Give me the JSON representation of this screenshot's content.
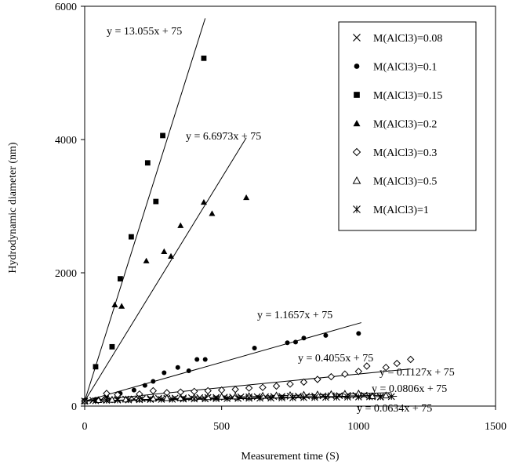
{
  "chart_data": {
    "type": "scatter",
    "xlabel": "Measurement time (S)",
    "ylabel": "Hydrodynamic diameter (nm)",
    "xlim": [
      0,
      1500
    ],
    "ylim": [
      0,
      6000
    ],
    "xticks": [
      "0",
      "500",
      "1000",
      "1500"
    ],
    "yticks": [
      "0",
      "2000",
      "4000",
      "6000"
    ],
    "grid": false,
    "legend_position": "top-right",
    "series": [
      {
        "name": "M(AlCl3)=0.08",
        "marker": "x",
        "points": [
          [
            0,
            75
          ],
          [
            30,
            85
          ],
          [
            60,
            92
          ],
          [
            90,
            95
          ],
          [
            120,
            100
          ],
          [
            150,
            105
          ],
          [
            180,
            107
          ],
          [
            210,
            110
          ],
          [
            240,
            112
          ],
          [
            270,
            115
          ],
          [
            300,
            117
          ],
          [
            330,
            120
          ],
          [
            360,
            122
          ],
          [
            390,
            125
          ],
          [
            420,
            127
          ],
          [
            450,
            129
          ],
          [
            480,
            130
          ],
          [
            510,
            133
          ],
          [
            540,
            135
          ],
          [
            570,
            137
          ],
          [
            600,
            138
          ],
          [
            630,
            140
          ],
          [
            660,
            141
          ],
          [
            690,
            143
          ],
          [
            720,
            145
          ],
          [
            750,
            147
          ],
          [
            780,
            149
          ],
          [
            810,
            150
          ],
          [
            840,
            151
          ],
          [
            870,
            153
          ],
          [
            900,
            155
          ],
          [
            930,
            157
          ],
          [
            960,
            159
          ],
          [
            990,
            160
          ],
          [
            1020,
            162
          ],
          [
            1050,
            140
          ],
          [
            1080,
            135
          ]
        ]
      },
      {
        "name": "M(AlCl3)=0.1",
        "marker": "circle",
        "points": [
          [
            0,
            75
          ],
          [
            40,
            100
          ],
          [
            80,
            150
          ],
          [
            130,
            190
          ],
          [
            180,
            240
          ],
          [
            220,
            310
          ],
          [
            250,
            370
          ],
          [
            290,
            500
          ],
          [
            340,
            580
          ],
          [
            380,
            530
          ],
          [
            410,
            700
          ],
          [
            440,
            700
          ],
          [
            620,
            870
          ],
          [
            740,
            950
          ],
          [
            770,
            960
          ],
          [
            800,
            1020
          ],
          [
            880,
            1060
          ],
          [
            1000,
            1090
          ]
        ]
      },
      {
        "name": "M(AlCl3)=0.15",
        "marker": "square",
        "points": [
          [
            0,
            75
          ],
          [
            40,
            590
          ],
          [
            100,
            890
          ],
          [
            130,
            1910
          ],
          [
            170,
            2540
          ],
          [
            230,
            3650
          ],
          [
            260,
            3070
          ],
          [
            285,
            4060
          ],
          [
            435,
            5220
          ]
        ]
      },
      {
        "name": "M(AlCl3)=0.2",
        "marker": "triangle",
        "points": [
          [
            0,
            75
          ],
          [
            110,
            1520
          ],
          [
            135,
            1500
          ],
          [
            225,
            2180
          ],
          [
            290,
            2320
          ],
          [
            315,
            2250
          ],
          [
            350,
            2710
          ],
          [
            435,
            3060
          ],
          [
            465,
            2890
          ],
          [
            590,
            3130
          ]
        ]
      },
      {
        "name": "M(AlCl3)=0.3",
        "marker": "diamond",
        "points": [
          [
            0,
            75
          ],
          [
            80,
            190
          ],
          [
            120,
            170
          ],
          [
            200,
            180
          ],
          [
            250,
            230
          ],
          [
            300,
            200
          ],
          [
            350,
            210
          ],
          [
            400,
            220
          ],
          [
            450,
            230
          ],
          [
            500,
            240
          ],
          [
            550,
            250
          ],
          [
            600,
            270
          ],
          [
            650,
            280
          ],
          [
            700,
            300
          ],
          [
            750,
            330
          ],
          [
            800,
            360
          ],
          [
            850,
            400
          ],
          [
            900,
            440
          ],
          [
            950,
            480
          ],
          [
            1000,
            520
          ],
          [
            1030,
            600
          ],
          [
            1100,
            580
          ],
          [
            1140,
            640
          ],
          [
            1190,
            700
          ]
        ]
      },
      {
        "name": "M(AlCl3)=0.5",
        "marker": "open-triangle",
        "points": [
          [
            0,
            75
          ],
          [
            50,
            90
          ],
          [
            100,
            95
          ],
          [
            150,
            100
          ],
          [
            200,
            110
          ],
          [
            250,
            115
          ],
          [
            300,
            120
          ],
          [
            350,
            125
          ],
          [
            400,
            130
          ],
          [
            450,
            135
          ],
          [
            500,
            140
          ],
          [
            550,
            145
          ],
          [
            600,
            150
          ],
          [
            650,
            155
          ],
          [
            700,
            160
          ],
          [
            750,
            165
          ],
          [
            800,
            170
          ],
          [
            850,
            175
          ],
          [
            900,
            180
          ],
          [
            950,
            185
          ],
          [
            1000,
            190
          ],
          [
            1050,
            150
          ],
          [
            1100,
            160
          ]
        ]
      },
      {
        "name": "M(AlCl3)=1",
        "marker": "asterisk",
        "points": [
          [
            0,
            75
          ],
          [
            40,
            80
          ],
          [
            80,
            85
          ],
          [
            120,
            90
          ],
          [
            160,
            92
          ],
          [
            200,
            95
          ],
          [
            240,
            98
          ],
          [
            280,
            100
          ],
          [
            320,
            102
          ],
          [
            360,
            104
          ],
          [
            400,
            106
          ],
          [
            440,
            108
          ],
          [
            480,
            110
          ],
          [
            520,
            112
          ],
          [
            560,
            114
          ],
          [
            600,
            116
          ],
          [
            640,
            118
          ],
          [
            680,
            120
          ],
          [
            720,
            122
          ],
          [
            760,
            124
          ],
          [
            800,
            126
          ],
          [
            840,
            128
          ],
          [
            880,
            130
          ],
          [
            920,
            132
          ],
          [
            960,
            134
          ],
          [
            1000,
            136
          ],
          [
            1040,
            138
          ],
          [
            1080,
            140
          ],
          [
            1120,
            142
          ]
        ]
      }
    ],
    "trendlines": [
      {
        "label": "y = 13.055x + 75",
        "slope": 13.055,
        "intercept": 75,
        "x_end": 440
      },
      {
        "label": "y = 6.6973x + 75",
        "slope": 6.6973,
        "intercept": 75,
        "x_end": 590
      },
      {
        "label": "y = 1.1657x + 75",
        "slope": 1.1657,
        "intercept": 75,
        "x_end": 1010
      },
      {
        "label": "y = 0.4055x + 75",
        "slope": 0.4055,
        "intercept": 75,
        "x_end": 1190
      },
      {
        "label": "y = 0.1127x + 75",
        "slope": 0.1127,
        "intercept": 75,
        "x_end": 1120
      },
      {
        "label": "y = 0.0806x + 75",
        "slope": 0.0806,
        "intercept": 75,
        "x_end": 1100
      },
      {
        "label": "y = 0.0634x + 75",
        "slope": 0.0634,
        "intercept": 75,
        "x_end": 1140
      }
    ]
  }
}
